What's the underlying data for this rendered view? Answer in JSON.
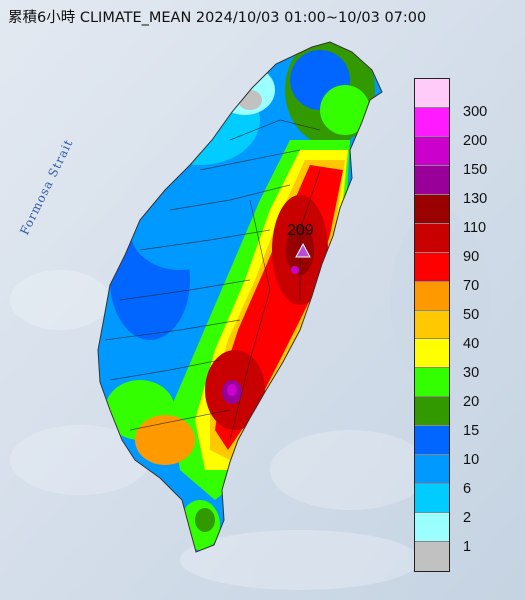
{
  "title": "累積6小時 CLIMATE_MEAN 2024/10/03 01:00~10/03 07:00",
  "map_labels": {
    "strait": "Formosa Strait",
    "peak_value": "209"
  },
  "legend": [
    {
      "label": "300",
      "color": "#ffcbf9"
    },
    {
      "label": "200",
      "color": "#ff1aff"
    },
    {
      "label": "150",
      "color": "#cc00cc"
    },
    {
      "label": "130",
      "color": "#990099"
    },
    {
      "label": "110",
      "color": "#990000"
    },
    {
      "label": "90",
      "color": "#c80000"
    },
    {
      "label": "70",
      "color": "#ff0000"
    },
    {
      "label": "50",
      "color": "#ff9900"
    },
    {
      "label": "40",
      "color": "#ffc800"
    },
    {
      "label": "30",
      "color": "#ffff00"
    },
    {
      "label": "20",
      "color": "#33ff00"
    },
    {
      "label": "15",
      "color": "#339900"
    },
    {
      "label": "10",
      "color": "#0066ff"
    },
    {
      "label": "6",
      "color": "#0099ff"
    },
    {
      "label": "2",
      "color": "#00ccff"
    },
    {
      "label": "1",
      "color": "#9bffff"
    },
    {
      "label": "",
      "color": "#c1c1c1"
    }
  ]
}
